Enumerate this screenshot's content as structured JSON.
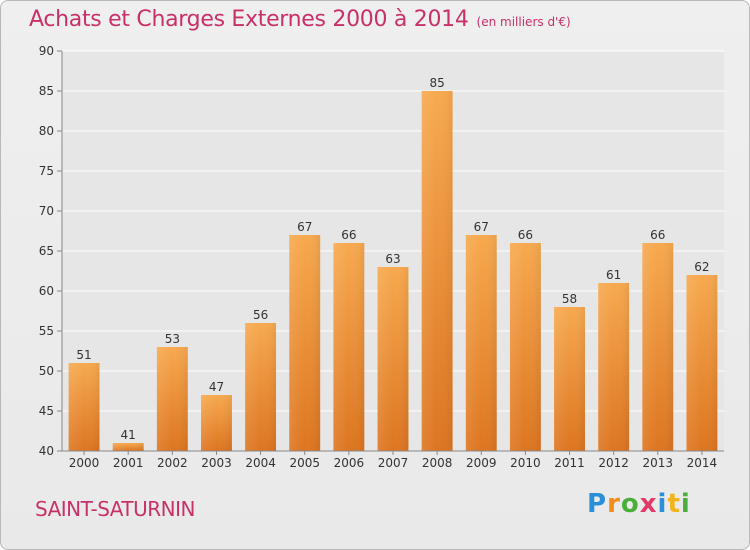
{
  "chart_data": {
    "type": "bar",
    "title": "Achats et Charges Externes 2000 à 2014",
    "subtitle": "(en milliers d'€)",
    "categories": [
      "2000",
      "2001",
      "2002",
      "2003",
      "2004",
      "2005",
      "2006",
      "2007",
      "2008",
      "2009",
      "2010",
      "2011",
      "2012",
      "2013",
      "2014"
    ],
    "values": [
      51,
      41,
      53,
      47,
      56,
      67,
      66,
      63,
      85,
      67,
      66,
      58,
      61,
      66,
      62
    ],
    "data_labels": [
      "51",
      "41",
      "53",
      "47",
      "56",
      "67",
      "66",
      "63",
      "85",
      "67",
      "66",
      "58",
      "61",
      "66",
      "62"
    ],
    "ylim": [
      40,
      90
    ],
    "yticks": [
      40,
      45,
      50,
      55,
      60,
      65,
      70,
      75,
      80,
      85,
      90
    ],
    "ytick_labels": [
      "40",
      "45",
      "50",
      "55",
      "60",
      "65",
      "70",
      "75",
      "80",
      "85",
      "90"
    ],
    "xlabel": "",
    "ylabel": "",
    "grid": true,
    "bar_color_top": "#f7a94f",
    "bar_color_bottom": "#dd7520"
  },
  "footer": {
    "town": "SAINT-SATURNIN",
    "logo_letters": [
      {
        "char": "P",
        "color": "#2a8fd8"
      },
      {
        "char": "r",
        "color": "#f28c1a"
      },
      {
        "char": "o",
        "color": "#4cae3a"
      },
      {
        "char": "x",
        "color": "#e23b6a"
      },
      {
        "char": "i",
        "color": "#2a8fd8"
      },
      {
        "char": "t",
        "color": "#f2b41a"
      },
      {
        "char": "i",
        "color": "#4cae3a"
      }
    ]
  },
  "colors": {
    "title": "#c8306a",
    "axis_text": "#333333",
    "grid": "#ffffff",
    "axis": "#888888"
  }
}
